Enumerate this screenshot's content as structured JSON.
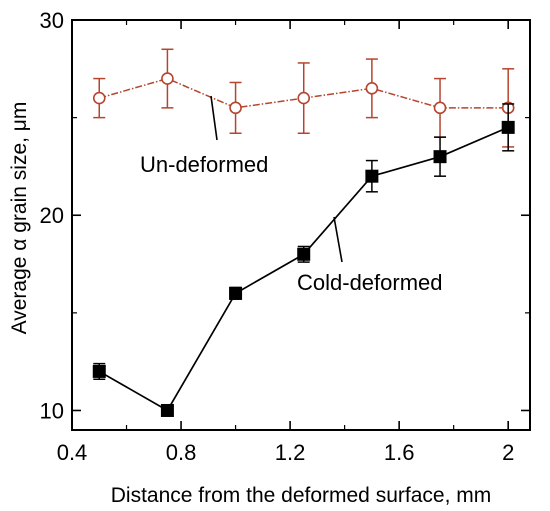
{
  "chart_data": {
    "type": "line",
    "xlabel": "Distance from  the deformed surface, mm",
    "ylabel": "Average  α grain size, μm",
    "xlim": [
      0.4,
      2.08
    ],
    "ylim": [
      9,
      30
    ],
    "x_ticks": [
      0.4,
      0.8,
      1.2,
      1.6,
      2.0
    ],
    "x_tick_labels": [
      "0.4",
      "0.8",
      "1.2",
      "1.6",
      "2"
    ],
    "y_ticks": [
      10,
      20,
      30
    ],
    "y_tick_labels": [
      "10",
      "20",
      "30"
    ],
    "grid": false,
    "x": [
      0.5,
      0.75,
      1.0,
      1.25,
      1.5,
      1.75,
      2.0
    ],
    "series": [
      {
        "annotation": "Un-deformed",
        "marker": "open-circle",
        "color": "#b5452f",
        "line_style": "dash-dot",
        "values": [
          26.0,
          27.0,
          25.5,
          26.0,
          26.5,
          25.5,
          25.5
        ],
        "error": [
          1.0,
          1.5,
          1.3,
          1.8,
          1.5,
          1.5,
          2.0
        ]
      },
      {
        "annotation": "Cold-deformed",
        "marker": "filled-square",
        "color": "#000000",
        "line_style": "solid",
        "values": [
          12.0,
          10.0,
          16.0,
          18.0,
          22.0,
          23.0,
          24.5
        ],
        "error": [
          0.4,
          0.2,
          0.3,
          0.4,
          0.8,
          1.0,
          1.2
        ]
      }
    ]
  }
}
